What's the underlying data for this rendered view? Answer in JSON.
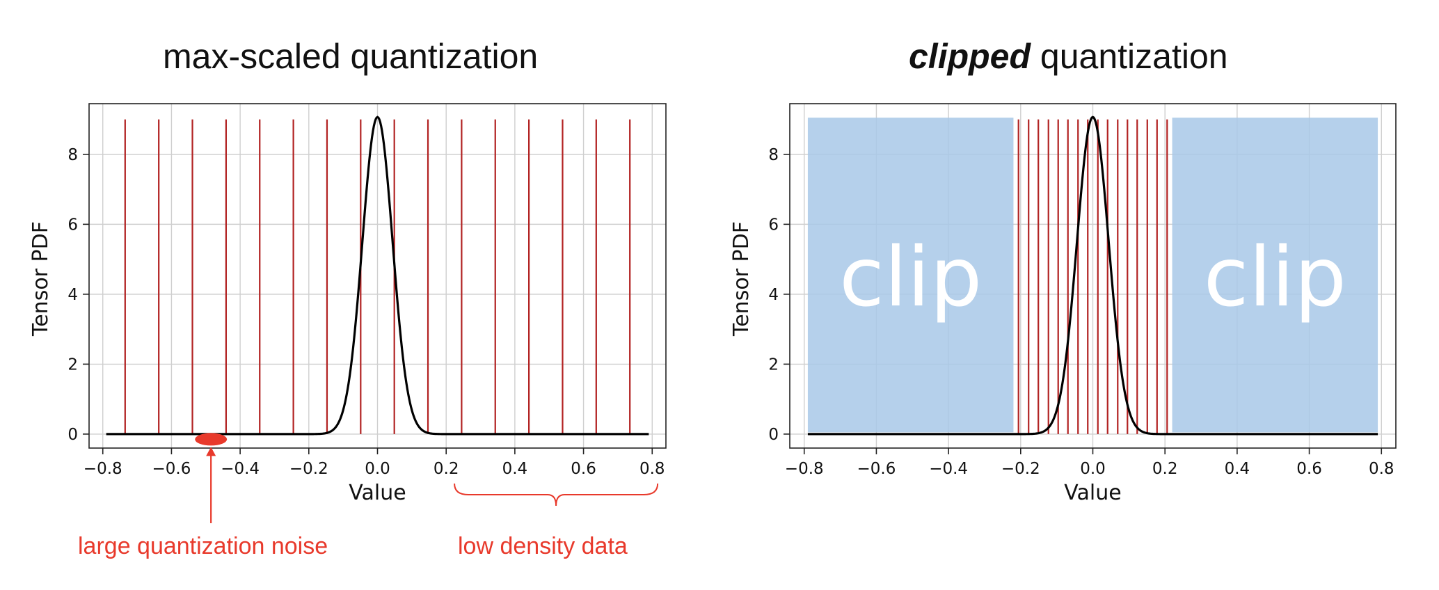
{
  "chart_data": [
    {
      "type": "line",
      "title": "max-scaled quantization",
      "xlabel": "Value",
      "ylabel": "Tensor PDF",
      "xlim": [
        -0.84,
        0.84
      ],
      "ylim": [
        -0.4,
        9.45
      ],
      "xticks": [
        -0.8,
        -0.6,
        -0.4,
        -0.2,
        0.0,
        0.2,
        0.4,
        0.6,
        0.8
      ],
      "xtick_labels": [
        "−0.8",
        "−0.6",
        "−0.4",
        "−0.2",
        "0.0",
        "0.2",
        "0.4",
        "0.6",
        "0.8"
      ],
      "yticks": [
        0,
        2,
        4,
        6,
        8
      ],
      "ytick_labels": [
        "0",
        "2",
        "4",
        "6",
        "8"
      ],
      "grid": true,
      "series": [
        {
          "kind": "gaussian-pdf",
          "color": "#000000",
          "mu": 0.0,
          "sigma": 0.044,
          "x_range": [
            -0.79,
            0.79
          ]
        }
      ],
      "quantization_levels": {
        "color": "#b22222",
        "top_y": 9.0,
        "x": [
          -0.735,
          -0.637,
          -0.539,
          -0.441,
          -0.343,
          -0.245,
          -0.147,
          -0.049,
          0.049,
          0.147,
          0.245,
          0.343,
          0.441,
          0.539,
          0.637,
          0.735
        ]
      },
      "annotations": [
        {
          "text": "large quantization noise",
          "color": "#e8392b",
          "points_to_x": -0.485
        },
        {
          "text": "low density data",
          "color": "#e8392b",
          "brace_x_range": [
            0.22,
            0.82
          ]
        }
      ]
    },
    {
      "type": "line",
      "title_prefix": "clipped",
      "title_suffix": " quantization",
      "xlabel": "Value",
      "ylabel": "Tensor PDF",
      "xlim": [
        -0.84,
        0.84
      ],
      "ylim": [
        -0.4,
        9.45
      ],
      "xticks": [
        -0.8,
        -0.6,
        -0.4,
        -0.2,
        0.0,
        0.2,
        0.4,
        0.6,
        0.8
      ],
      "xtick_labels": [
        "−0.8",
        "−0.6",
        "−0.4",
        "−0.2",
        "0.0",
        "0.2",
        "0.4",
        "0.6",
        "0.8"
      ],
      "yticks": [
        0,
        2,
        4,
        6,
        8
      ],
      "ytick_labels": [
        "0",
        "2",
        "4",
        "6",
        "8"
      ],
      "grid": true,
      "series": [
        {
          "kind": "gaussian-pdf",
          "color": "#000000",
          "mu": 0.0,
          "sigma": 0.044,
          "x_range": [
            -0.79,
            0.79
          ]
        }
      ],
      "quantization_levels": {
        "color": "#b22222",
        "top_y": 9.0,
        "x": [
          -0.206,
          -0.178,
          -0.151,
          -0.123,
          -0.096,
          -0.069,
          -0.041,
          -0.014,
          0.014,
          0.041,
          0.069,
          0.096,
          0.123,
          0.151,
          0.178,
          0.206
        ]
      },
      "clip_regions": [
        {
          "label": "clip",
          "x_range": [
            -0.79,
            -0.22
          ],
          "y_range": [
            0.05,
            9.05
          ],
          "color": "#a8c8e8"
        },
        {
          "label": "clip",
          "x_range": [
            0.22,
            0.79
          ],
          "y_range": [
            0.05,
            9.05
          ],
          "color": "#a8c8e8"
        }
      ]
    }
  ]
}
